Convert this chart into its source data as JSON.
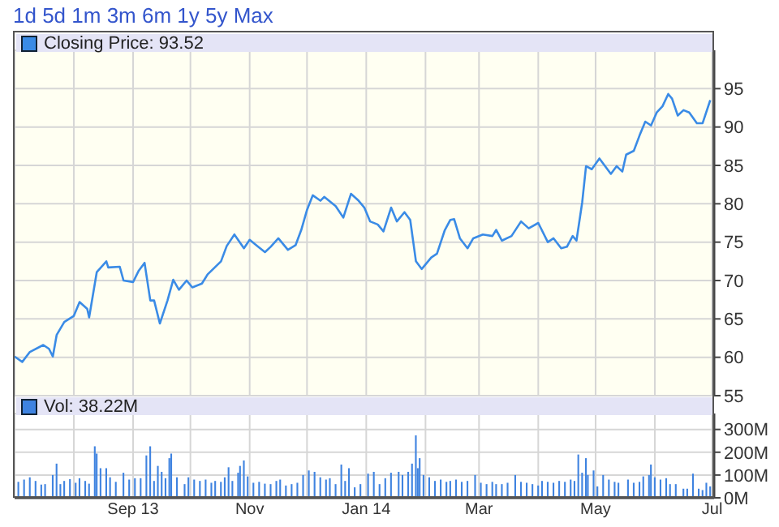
{
  "chart_data": [
    {
      "type": "line",
      "annotations": [
        "1d 5d 1m 3m 6m 1y 5y Max"
      ],
      "legend": "top left",
      "grid": true,
      "marker": "none",
      "tick_labels": "y",
      "xlim": [
        "2013-07-01",
        "2014-07-02"
      ],
      "xticks": [
        {
          "value": "2013-08-01",
          "label": null
        },
        {
          "value": "2013-09-01",
          "label": null
        },
        {
          "value": "2013-10-01",
          "label": null
        },
        {
          "value": "2013-11-01",
          "label": null
        },
        {
          "value": "2013-12-01",
          "label": null
        },
        {
          "value": "2014-01-01",
          "label": null
        },
        {
          "value": "2014-02-01",
          "label": null
        },
        {
          "value": "2014-03-01",
          "label": null
        },
        {
          "value": "2014-04-01",
          "label": null
        },
        {
          "value": "2014-05-01",
          "label": null
        },
        {
          "value": "2014-06-01",
          "label": null
        },
        {
          "value": "2014-07-01",
          "label": null
        }
      ],
      "ylim": [
        55,
        100
      ],
      "yticks": [
        55,
        60,
        65,
        70,
        75,
        80,
        85,
        90,
        95
      ],
      "x": [
        "2013-07-01",
        "2013-07-05",
        "2013-07-09",
        "2013-07-16",
        "2013-07-19",
        "2013-07-21",
        "2013-07-23",
        "2013-07-27",
        "2013-08-01",
        "2013-08-04",
        "2013-08-08",
        "2013-08-09",
        "2013-08-13",
        "2013-08-18",
        "2013-08-19",
        "2013-08-25",
        "2013-08-27",
        "2013-09-01",
        "2013-09-04",
        "2013-09-07",
        "2013-09-10",
        "2013-09-12",
        "2013-09-15",
        "2013-09-19",
        "2013-09-22",
        "2013-09-25",
        "2013-09-29",
        "2013-10-02",
        "2013-10-07",
        "2013-10-10",
        "2013-10-17",
        "2013-10-20",
        "2013-10-24",
        "2013-10-29",
        "2013-11-01",
        "2013-11-05",
        "2013-11-09",
        "2013-11-12",
        "2013-11-16",
        "2013-11-21",
        "2013-11-25",
        "2013-11-28",
        "2013-12-01",
        "2013-12-04",
        "2013-12-08",
        "2013-12-10",
        "2013-12-16",
        "2013-12-20",
        "2013-12-24",
        "2013-12-28",
        "2013-12-31",
        "2014-01-03",
        "2014-01-07",
        "2014-01-10",
        "2014-01-14",
        "2014-01-17",
        "2014-01-21",
        "2014-01-24",
        "2014-01-27",
        "2014-01-30",
        "2014-02-04",
        "2014-02-07",
        "2014-02-11",
        "2014-02-14",
        "2014-02-16",
        "2014-02-19",
        "2014-02-23",
        "2014-02-26",
        "2014-03-03",
        "2014-03-08",
        "2014-03-10",
        "2014-03-13",
        "2014-03-18",
        "2014-03-23",
        "2014-03-27",
        "2014-04-01",
        "2014-04-06",
        "2014-04-09",
        "2014-04-13",
        "2014-04-16",
        "2014-04-19",
        "2014-04-21",
        "2014-04-24",
        "2014-04-26",
        "2014-04-29",
        "2014-05-03",
        "2014-05-09",
        "2014-05-12",
        "2014-05-15",
        "2014-05-17",
        "2014-05-21",
        "2014-05-24",
        "2014-05-27",
        "2014-05-30",
        "2014-06-02",
        "2014-06-05",
        "2014-06-08",
        "2014-06-10",
        "2014-06-13",
        "2014-06-16",
        "2014-06-19",
        "2014-06-23",
        "2014-06-26",
        "2014-06-30"
      ],
      "series": [
        {
          "name": "Closing Price: 93.52",
          "color": "#3a8be6",
          "values": [
            60.1,
            59.4,
            60.7,
            61.6,
            61.1,
            60.1,
            62.9,
            64.6,
            65.4,
            67.2,
            66.3,
            65.2,
            71.1,
            72.5,
            71.7,
            71.8,
            70,
            69.8,
            71.3,
            72.3,
            67.4,
            67.4,
            64.4,
            67.4,
            70.1,
            68.8,
            70,
            69.1,
            69.6,
            70.8,
            72.5,
            74.5,
            76,
            74.2,
            75.3,
            74.5,
            73.7,
            74.4,
            75.5,
            74,
            74.6,
            76.6,
            79.2,
            81.1,
            80.4,
            80.9,
            79.7,
            78.2,
            81.3,
            80.4,
            79.5,
            77.7,
            77.3,
            76.4,
            79.5,
            77.7,
            78.9,
            77.9,
            72.5,
            71.5,
            73,
            73.5,
            76.5,
            77.9,
            78,
            75.5,
            74.2,
            75.5,
            76,
            75.8,
            76.6,
            75.2,
            75.8,
            77.7,
            76.8,
            77.5,
            75,
            75.5,
            74.2,
            74.4,
            75.8,
            75.2,
            80.2,
            84.9,
            84.5,
            85.9,
            83.9,
            84.9,
            84.2,
            86.4,
            86.9,
            88.9,
            90.7,
            90.2,
            91.9,
            92.7,
            94.3,
            93.7,
            91.5,
            92.2,
            91.9,
            90.5,
            90.5,
            93.5
          ]
        }
      ]
    },
    {
      "type": "bar",
      "legend": "top left",
      "grid": true,
      "xlim": [
        "2013-07-01",
        "2014-07-02"
      ],
      "xticks": [
        {
          "value": "2013-08-01",
          "label": null
        },
        {
          "value": "2013-09-01",
          "label": "Sep 13"
        },
        {
          "value": "2013-10-01",
          "label": null
        },
        {
          "value": "2013-11-01",
          "label": "Nov"
        },
        {
          "value": "2013-12-01",
          "label": null
        },
        {
          "value": "2014-01-01",
          "label": "Jan 14"
        },
        {
          "value": "2014-02-01",
          "label": null
        },
        {
          "value": "2014-03-01",
          "label": "Mar"
        },
        {
          "value": "2014-04-01",
          "label": null
        },
        {
          "value": "2014-05-01",
          "label": "May"
        },
        {
          "value": "2014-06-01",
          "label": null
        },
        {
          "value": "2014-07-01",
          "label": "Jul"
        }
      ],
      "ylim": [
        0,
        370
      ],
      "yticks": [
        {
          "value": 0,
          "label": "0M"
        },
        {
          "value": 100,
          "label": "100M"
        },
        {
          "value": 200,
          "label": "200M"
        },
        {
          "value": 300,
          "label": "300M"
        }
      ],
      "x": [
        "2013-07-03",
        "2013-07-06",
        "2013-07-09",
        "2013-07-12",
        "2013-07-15",
        "2013-07-17",
        "2013-07-21",
        "2013-07-23",
        "2013-07-25",
        "2013-07-27",
        "2013-07-30",
        "2013-08-02",
        "2013-08-04",
        "2013-08-07",
        "2013-08-09",
        "2013-08-12",
        "2013-08-13",
        "2013-08-15",
        "2013-08-18",
        "2013-08-20",
        "2013-08-23",
        "2013-08-27",
        "2013-08-30",
        "2013-09-02",
        "2013-09-05",
        "2013-09-08",
        "2013-09-10",
        "2013-09-12",
        "2013-09-14",
        "2013-09-16",
        "2013-09-18",
        "2013-09-20",
        "2013-09-21",
        "2013-09-24",
        "2013-09-28",
        "2013-09-30",
        "2013-10-03",
        "2013-10-06",
        "2013-10-09",
        "2013-10-12",
        "2013-10-14",
        "2013-10-17",
        "2013-10-19",
        "2013-10-21",
        "2013-10-23",
        "2013-10-26",
        "2013-10-27",
        "2013-10-29",
        "2013-10-31",
        "2013-11-03",
        "2013-11-06",
        "2013-11-09",
        "2013-11-12",
        "2013-11-15",
        "2013-11-17",
        "2013-11-20",
        "2013-11-23",
        "2013-11-26",
        "2013-11-29",
        "2013-12-02",
        "2013-12-05",
        "2013-12-08",
        "2013-12-11",
        "2013-12-13",
        "2013-12-16",
        "2013-12-19",
        "2013-12-21",
        "2013-12-23",
        "2013-12-26",
        "2013-12-29",
        "2014-01-02",
        "2014-01-05",
        "2014-01-08",
        "2014-01-11",
        "2014-01-14",
        "2014-01-18",
        "2014-01-20",
        "2014-01-23",
        "2014-01-25",
        "2014-01-27",
        "2014-01-28",
        "2014-01-29",
        "2014-01-31",
        "2014-02-03",
        "2014-02-06",
        "2014-02-09",
        "2014-02-12",
        "2014-02-14",
        "2014-02-17",
        "2014-02-20",
        "2014-02-23",
        "2014-02-27",
        "2014-03-02",
        "2014-03-05",
        "2014-03-08",
        "2014-03-10",
        "2014-03-13",
        "2014-03-16",
        "2014-03-20",
        "2014-03-23",
        "2014-03-26",
        "2014-03-29",
        "2014-04-01",
        "2014-04-03",
        "2014-04-06",
        "2014-04-09",
        "2014-04-12",
        "2014-04-15",
        "2014-04-18",
        "2014-04-20",
        "2014-04-22",
        "2014-04-24",
        "2014-04-26",
        "2014-04-27",
        "2014-04-30",
        "2014-05-02",
        "2014-05-05",
        "2014-05-08",
        "2014-05-11",
        "2014-05-13",
        "2014-05-18",
        "2014-05-21",
        "2014-05-24",
        "2014-05-26",
        "2014-05-29",
        "2014-05-30",
        "2014-06-01",
        "2014-06-04",
        "2014-06-07",
        "2014-06-09",
        "2014-06-12",
        "2014-06-16",
        "2014-06-18",
        "2014-06-21",
        "2014-06-24",
        "2014-06-26",
        "2014-06-28",
        "2014-06-30"
      ],
      "series": [
        {
          "name": "Vol: 38.22M",
          "color": "#3f83e0",
          "values": [
            70,
            80,
            90,
            74,
            58,
            60,
            100,
            150,
            60,
            74,
            82,
            66,
            86,
            74,
            62,
            226,
            194,
            130,
            130,
            90,
            70,
            110,
            80,
            86,
            86,
            186,
            226,
            74,
            140,
            114,
            86,
            174,
            194,
            90,
            60,
            90,
            80,
            74,
            80,
            66,
            74,
            70,
            90,
            134,
            74,
            110,
            140,
            164,
            94,
            66,
            70,
            62,
            60,
            74,
            80,
            54,
            60,
            66,
            100,
            120,
            114,
            90,
            80,
            86,
            60,
            146,
            74,
            130,
            46,
            60,
            106,
            114,
            60,
            86,
            110,
            114,
            100,
            114,
            150,
            274,
            130,
            174,
            100,
            90,
            74,
            80,
            70,
            74,
            80,
            70,
            74,
            100,
            66,
            60,
            70,
            60,
            60,
            66,
            100,
            70,
            66,
            60,
            54,
            74,
            70,
            66,
            74,
            70,
            80,
            74,
            190,
            110,
            174,
            100,
            120,
            50,
            100,
            80,
            70,
            66,
            80,
            66,
            70,
            94,
            100,
            146,
            90,
            80,
            86,
            60,
            60,
            40,
            40,
            106,
            40,
            34,
            66,
            50
          ]
        }
      ]
    }
  ]
}
